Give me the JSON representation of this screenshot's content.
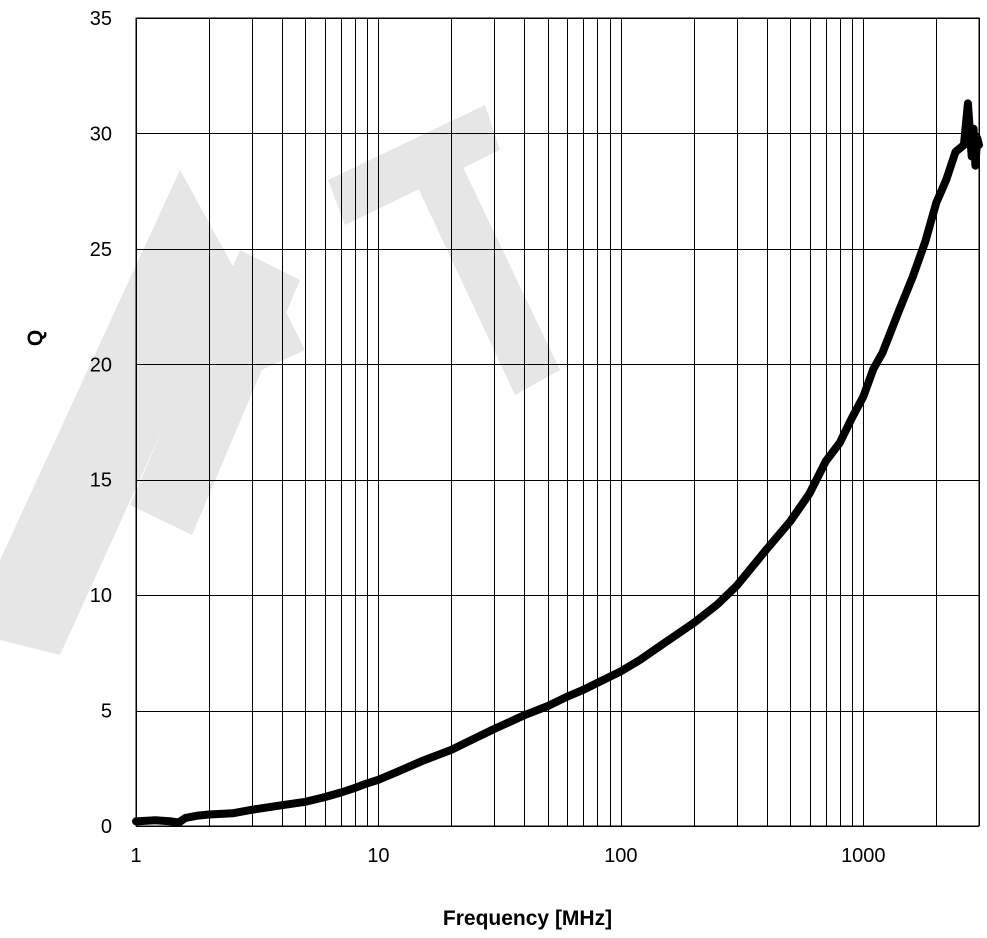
{
  "chart_data": {
    "type": "line",
    "title": "",
    "xlabel": "Frequency [MHz]",
    "ylabel": "Q",
    "x_scale": "log",
    "xlim": [
      1,
      3000
    ],
    "ylim": [
      0,
      35
    ],
    "x_tick_labels": [
      "1",
      "10",
      "100",
      "1000"
    ],
    "y_tick_labels": [
      "0",
      "5",
      "10",
      "15",
      "20",
      "25",
      "30",
      "35"
    ],
    "grid": true,
    "legend": "none",
    "watermark_text": "DRAFT",
    "series": [
      {
        "color": "#000000",
        "x": [
          1,
          1.2,
          1.4,
          1.5,
          1.6,
          1.8,
          2,
          2.5,
          3,
          4,
          5,
          6,
          7,
          8,
          9,
          10,
          12,
          15,
          20,
          25,
          30,
          40,
          50,
          60,
          70,
          80,
          100,
          120,
          150,
          200,
          250,
          300,
          400,
          500,
          600,
          700,
          800,
          900,
          1000,
          1100,
          1200,
          1400,
          1600,
          1800,
          2000,
          2200,
          2400,
          2600,
          2700,
          2800,
          2850,
          2900,
          2950,
          3000
        ],
        "y": [
          0.2,
          0.25,
          0.2,
          0.15,
          0.35,
          0.45,
          0.5,
          0.55,
          0.7,
          0.9,
          1.05,
          1.25,
          1.45,
          1.65,
          1.85,
          2.0,
          2.35,
          2.8,
          3.3,
          3.8,
          4.2,
          4.8,
          5.2,
          5.6,
          5.9,
          6.2,
          6.7,
          7.2,
          7.9,
          8.8,
          9.6,
          10.4,
          12.0,
          13.2,
          14.4,
          15.8,
          16.6,
          17.7,
          18.6,
          19.8,
          20.5,
          22.3,
          23.8,
          25.3,
          27.0,
          28.0,
          29.2,
          29.5,
          31.3,
          29.0,
          30.2,
          28.6,
          29.8,
          29.5
        ]
      }
    ]
  }
}
